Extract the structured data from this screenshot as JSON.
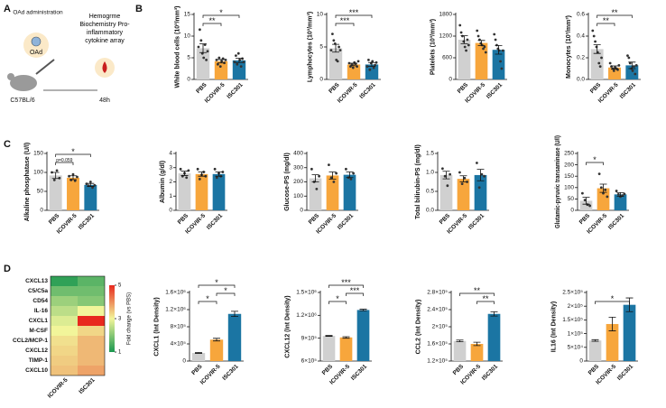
{
  "figure": {
    "panels": [
      "A",
      "B",
      "C",
      "D"
    ],
    "schematic": {
      "injection": "OAd administration",
      "virus": "OAd",
      "readouts": "Hemogrme Biochemistry Pro-inflammatory cytokine array",
      "mouse": "C57BL/6",
      "time": "48h"
    }
  },
  "chart_data": [
    {
      "type": "bar",
      "ylabel": "White blood cells (10³/mm³)",
      "categories": [
        "PBS",
        "ICOVIR-5",
        "ISC301"
      ],
      "colors": [
        "#d0d0d0",
        "#f7a63c",
        "#1b75a3"
      ],
      "values": [
        7.2,
        4.2,
        4.4
      ],
      "errors": [
        1.0,
        0.4,
        0.5
      ],
      "points": [
        [
          7.5,
          11.5,
          9,
          6,
          5,
          8,
          4.5,
          6.5
        ],
        [
          4.5,
          3.5,
          5,
          3,
          4.2,
          4.8,
          3.8,
          4.5
        ],
        [
          4,
          5.5,
          3.5,
          6,
          4.5,
          3,
          4.8,
          4
        ]
      ],
      "ylim": [
        0,
        15
      ],
      "yticks": [
        0,
        5,
        10,
        15
      ],
      "significance": [
        {
          "from": 0,
          "to": 1,
          "label": "**"
        },
        {
          "from": 0,
          "to": 2,
          "label": "*"
        }
      ]
    },
    {
      "type": "bar",
      "ylabel": "Lymphocytes (10³/mm³)",
      "categories": [
        "PBS",
        "ICOVIR-5",
        "ISC301"
      ],
      "colors": [
        "#d0d0d0",
        "#f7a63c",
        "#1b75a3"
      ],
      "values": [
        4.8,
        2.3,
        2.3
      ],
      "errors": [
        0.6,
        0.2,
        0.3
      ],
      "points": [
        [
          4.5,
          7,
          6,
          5.5,
          3,
          2.8,
          5,
          4.5
        ],
        [
          2.5,
          2,
          2.3,
          1.8,
          2.6,
          2.4,
          2,
          2.8
        ],
        [
          2,
          3,
          1.5,
          2.5,
          2.8,
          1.8,
          2.2,
          2.6
        ]
      ],
      "ylim": [
        0,
        10
      ],
      "yticks": [
        0,
        5,
        10
      ],
      "significance": [
        {
          "from": 0,
          "to": 1,
          "label": "***"
        },
        {
          "from": 0,
          "to": 2,
          "label": "***"
        }
      ]
    },
    {
      "type": "bar",
      "ylabel": "Platelets (10³/mm³)",
      "categories": [
        "PBS",
        "ICOVIR-5",
        "ISC301"
      ],
      "colors": [
        "#d0d0d0",
        "#f7a63c",
        "#1b75a3"
      ],
      "values": [
        1100,
        1010,
        820
      ],
      "errors": [
        110,
        70,
        120
      ],
      "points": [
        [
          1500,
          1300,
          1200,
          1050,
          900,
          800,
          1100,
          950
        ],
        [
          1350,
          1200,
          1100,
          1000,
          950,
          850,
          900,
          750
        ],
        [
          1250,
          1100,
          950,
          850,
          800,
          500,
          300,
          800
        ]
      ],
      "ylim": [
        0,
        1800
      ],
      "yticks": [
        0,
        600,
        1200,
        1800
      ],
      "significance": []
    },
    {
      "type": "bar",
      "ylabel": "Monocytes (10³/mm³)",
      "categories": [
        "PBS",
        "ICOVIR-5",
        "ISC301"
      ],
      "colors": [
        "#d0d0d0",
        "#f7a63c",
        "#1b75a3"
      ],
      "values": [
        0.28,
        0.11,
        0.13
      ],
      "errors": [
        0.04,
        0.015,
        0.03
      ],
      "points": [
        [
          0.45,
          0.4,
          0.35,
          0.3,
          0.25,
          0.15,
          0.12,
          0.2
        ],
        [
          0.15,
          0.12,
          0.1,
          0.08,
          0.11,
          0.1,
          0.09,
          0.13
        ],
        [
          0.22,
          0.2,
          0.15,
          0.1,
          0.08,
          0.12,
          0.05,
          0.13
        ]
      ],
      "ylim": [
        0,
        0.6
      ],
      "yticks": [
        {
          "value": 0,
          "label": "0.0"
        },
        0.2,
        0.4,
        0.6
      ],
      "significance": [
        {
          "from": 0,
          "to": 1,
          "label": "**"
        },
        {
          "from": 0,
          "to": 2,
          "label": "**"
        }
      ]
    },
    {
      "type": "bar",
      "ylabel": "Alkaline phosphatase (U/l)",
      "categories": [
        "PBS",
        "ICOVIR-5",
        "ISC301"
      ],
      "colors": [
        "#d0d0d0",
        "#f7a63c",
        "#1b75a3"
      ],
      "values": [
        92,
        86,
        67
      ],
      "errors": [
        8,
        5,
        4
      ],
      "points": [
        [
          100,
          80,
          105,
          85
        ],
        [
          90,
          80,
          95,
          78,
          88
        ],
        [
          70,
          65,
          75,
          60,
          66
        ]
      ],
      "ylim": [
        0,
        150
      ],
      "yticks": [
        0,
        50,
        100,
        150
      ],
      "significance": [
        {
          "from": 0,
          "to": 1,
          "label": "p=0.059"
        },
        {
          "from": 0,
          "to": 2,
          "label": "*"
        }
      ]
    },
    {
      "type": "bar",
      "ylabel": "Albumin (g/dl)",
      "categories": [
        "PBS",
        "ICOVIR-5",
        "ISC301"
      ],
      "colors": [
        "#d0d0d0",
        "#f7a63c",
        "#1b75a3"
      ],
      "values": [
        2.6,
        2.55,
        2.55
      ],
      "errors": [
        0.15,
        0.15,
        0.15
      ],
      "points": [
        [
          2.9,
          2.4,
          2.6,
          2.3,
          2.8
        ],
        [
          2.9,
          2.2,
          2.5,
          2.7,
          2.4
        ],
        [
          2.9,
          2.3,
          2.6,
          2.4,
          2.7
        ]
      ],
      "ylim": [
        0,
        4
      ],
      "yticks": [
        0,
        1,
        2,
        3,
        4
      ],
      "significance": []
    },
    {
      "type": "bar",
      "ylabel": "Glucose-PS (mg/dl)",
      "categories": [
        "PBS",
        "ICOVIR-5",
        "ISC301"
      ],
      "colors": [
        "#d0d0d0",
        "#f7a63c",
        "#1b75a3"
      ],
      "values": [
        225,
        245,
        250
      ],
      "errors": [
        25,
        25,
        20
      ],
      "points": [
        [
          290,
          200,
          150,
          240
        ],
        [
          320,
          230,
          200,
          260
        ],
        [
          290,
          230,
          220,
          260
        ]
      ],
      "ylim": [
        0,
        400
      ],
      "yticks": [
        0,
        100,
        200,
        300,
        400
      ],
      "significance": []
    },
    {
      "type": "bar",
      "ylabel": "Total bilirubin-PS (mg/dl)",
      "categories": [
        "PBS",
        "ICOVIR-5",
        "ISC301"
      ],
      "colors": [
        "#d0d0d0",
        "#f7a63c",
        "#1b75a3"
      ],
      "values": [
        0.93,
        0.83,
        0.93
      ],
      "errors": [
        0.1,
        0.08,
        0.15
      ],
      "points": [
        [
          1.1,
          0.9,
          0.65,
          0.95
        ],
        [
          1.0,
          0.7,
          0.85,
          0.75
        ],
        [
          1.25,
          0.6,
          0.95,
          0.9
        ]
      ],
      "ylim": [
        0,
        1.5
      ],
      "yticks": [
        {
          "value": 0,
          "label": "0.0"
        },
        0.5,
        {
          "value": 1,
          "label": "1.0"
        },
        1.5
      ],
      "significance": []
    },
    {
      "type": "bar",
      "ylabel": "Glutamic-pyruvic transaminase (U/l)",
      "categories": [
        "PBS",
        "ICOVIR-5",
        "ISC301"
      ],
      "colors": [
        "#d0d0d0",
        "#f7a63c",
        "#1b75a3"
      ],
      "values": [
        42,
        97,
        70
      ],
      "errors": [
        15,
        18,
        8
      ],
      "points": [
        [
          75,
          45,
          25,
          20
        ],
        [
          160,
          100,
          75,
          90,
          60
        ],
        [
          85,
          70,
          60,
          65,
          72
        ]
      ],
      "ylim": [
        0,
        250
      ],
      "yticks": [
        0,
        50,
        100,
        150,
        200,
        250
      ],
      "significance": [
        {
          "from": 0,
          "to": 1,
          "label": "*"
        }
      ]
    },
    {
      "type": "bar",
      "ylabel": "CXCL1 (Int Density)",
      "categories": [
        "PBS",
        "ICOVIR-5",
        "ISC301"
      ],
      "colors": [
        "#d0d0d0",
        "#f7a63c",
        "#1b75a3"
      ],
      "values": [
        190000,
        500000,
        1100000
      ],
      "errors": [
        10000,
        30000,
        60000
      ],
      "ylim": [
        0,
        1600000
      ],
      "yticks": [
        0,
        {
          "value": 400000,
          "label": "4×10⁵"
        },
        {
          "value": 800000,
          "label": "8×10⁵"
        },
        {
          "value": 1200000,
          "label": "1.2×10⁶"
        },
        {
          "value": 1600000,
          "label": "1.6×10⁶"
        }
      ],
      "significance": [
        {
          "from": 0,
          "to": 1,
          "label": "*"
        },
        {
          "from": 1,
          "to": 2,
          "label": "*"
        },
        {
          "from": 0,
          "to": 2,
          "label": "*"
        }
      ]
    },
    {
      "type": "bar",
      "ylabel": "CXCL12 (Int Density)",
      "categories": [
        "PBS",
        "ICOVIR-5",
        "ISC301"
      ],
      "colors": [
        "#d0d0d0",
        "#f7a63c",
        "#1b75a3"
      ],
      "values": [
        930000,
        910000,
        1270000
      ],
      "errors": [
        5000,
        10000,
        10000
      ],
      "ylim": [
        600000,
        1500000
      ],
      "yticks": [
        {
          "value": 600000,
          "label": "6×10⁵"
        },
        {
          "value": 900000,
          "label": "9×10⁵"
        },
        {
          "value": 1200000,
          "label": "1.2×10⁶"
        },
        {
          "value": 1500000,
          "label": "1.5×10⁶"
        }
      ],
      "significance": [
        {
          "from": 0,
          "to": 1,
          "label": "*"
        },
        {
          "from": 1,
          "to": 2,
          "label": "***"
        },
        {
          "from": 0,
          "to": 2,
          "label": "***"
        }
      ]
    },
    {
      "type": "bar",
      "ylabel": "CCL2 (Int Density)",
      "categories": [
        "PBS",
        "ICOVIR-5",
        "ISC301"
      ],
      "colors": [
        "#d0d0d0",
        "#f7a63c",
        "#1b75a3"
      ],
      "values": [
        167000,
        160000,
        230000
      ],
      "errors": [
        2000,
        4000,
        5000
      ],
      "ylim": [
        120000,
        280000
      ],
      "yticks": [
        {
          "value": 120000,
          "label": "1.2×10⁵"
        },
        {
          "value": 160000,
          "label": "1.6×10⁵"
        },
        {
          "value": 200000,
          "label": "2×10⁵"
        },
        {
          "value": 240000,
          "label": "2.4×10⁵"
        },
        {
          "value": 280000,
          "label": "2.8×10⁵"
        }
      ],
      "significance": [
        {
          "from": 1,
          "to": 2,
          "label": "**"
        },
        {
          "from": 0,
          "to": 2,
          "label": "**"
        }
      ]
    },
    {
      "type": "bar",
      "ylabel": "IL16 (Int Density)",
      "categories": [
        "PBS",
        "ICOVIR-5",
        "ISC301"
      ],
      "colors": [
        "#d0d0d0",
        "#f7a63c",
        "#1b75a3"
      ],
      "values": [
        75000,
        135000,
        205000
      ],
      "errors": [
        3000,
        25000,
        25000
      ],
      "ylim": [
        0,
        250000
      ],
      "yticks": [
        0,
        {
          "value": 50000,
          "label": "5×10⁴"
        },
        {
          "value": 100000,
          "label": "1×10⁵"
        },
        {
          "value": 150000,
          "label": "1.5×10⁵"
        },
        {
          "value": 200000,
          "label": "2×10⁵"
        },
        {
          "value": 250000,
          "label": "2.5×10⁵"
        }
      ],
      "significance": [
        {
          "from": 0,
          "to": 2,
          "label": "*"
        }
      ]
    },
    {
      "type": "heatmap",
      "rows": [
        "CXCL13",
        "C5/C5a",
        "CD54",
        "IL-16",
        "CXCL1",
        "M-CSF",
        "CCL2/MCP-1",
        "CXCL12",
        "TIMP-1",
        "CXCL10"
      ],
      "columns": [
        "ICOVIR-5",
        "ISC301"
      ],
      "values": [
        [
          1.2,
          1.6
        ],
        [
          1.8,
          1.8
        ],
        [
          2.2,
          2.0
        ],
        [
          2.5,
          3.0
        ],
        [
          2.8,
          5.0
        ],
        [
          3.0,
          3.3
        ],
        [
          3.2,
          3.6
        ],
        [
          3.3,
          3.6
        ],
        [
          3.4,
          3.6
        ],
        [
          3.5,
          3.8
        ]
      ],
      "colormap": [
        "#1a9850",
        "#f2f59a",
        "#e8281e"
      ],
      "colorbar": {
        "label": "Fold change (vs PBS)",
        "lim": [
          1,
          5
        ],
        "ticks": [
          1,
          3,
          5
        ]
      }
    }
  ]
}
